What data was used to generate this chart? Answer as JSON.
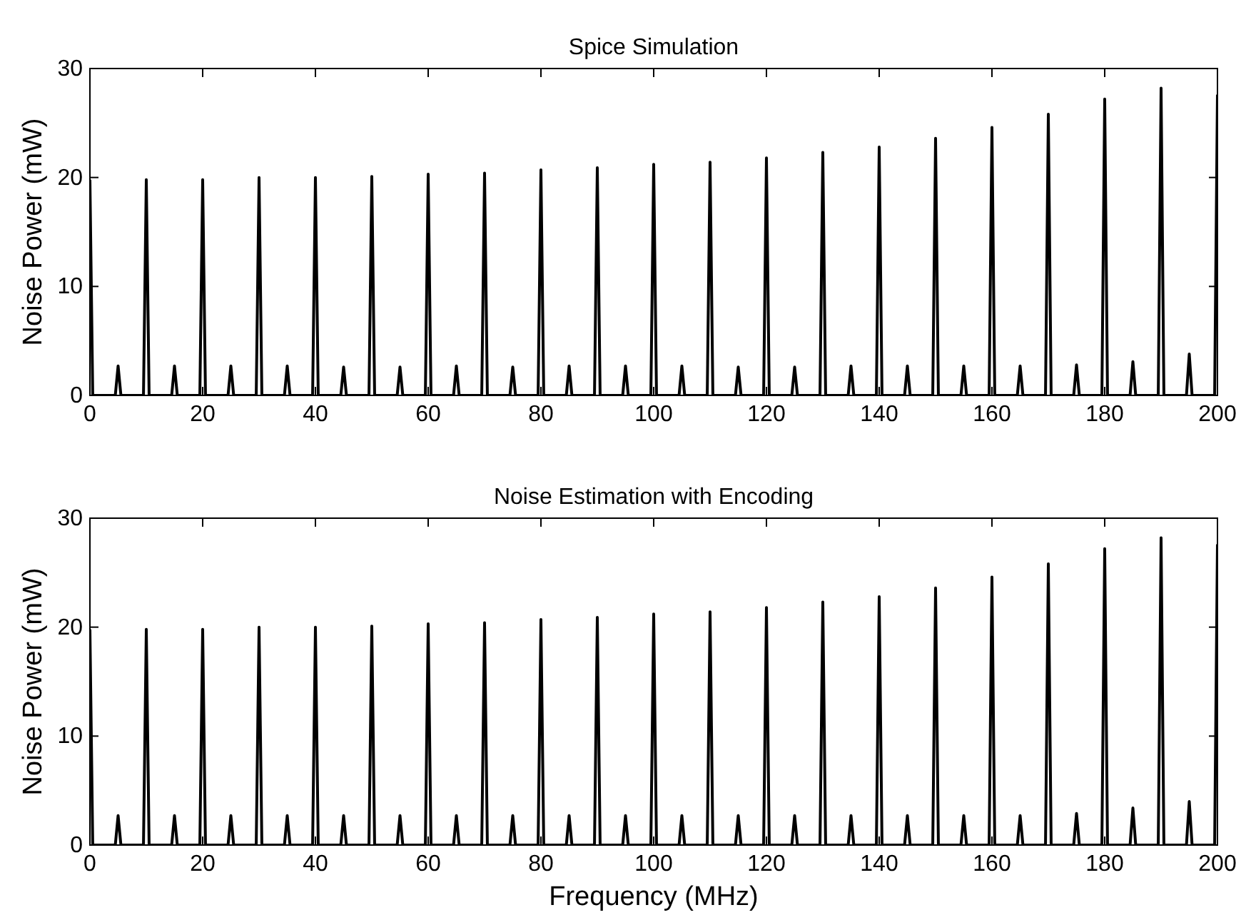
{
  "chart_data": [
    {
      "type": "line",
      "title": "Spice Simulation",
      "ylabel": "Noise Power (mW)",
      "xlim": [
        0,
        200
      ],
      "xticks": [
        0,
        20,
        40,
        60,
        80,
        100,
        120,
        140,
        160,
        180,
        200
      ],
      "ylim": [
        0,
        30
      ],
      "yticks": [
        0,
        10,
        20,
        30
      ],
      "x": [
        0,
        0.5,
        4.5,
        5,
        5.5,
        9.5,
        10,
        10.5,
        14.5,
        15,
        15.5,
        19.5,
        20,
        20.5,
        24.5,
        25,
        25.5,
        29.5,
        30,
        30.5,
        34.5,
        35,
        35.5,
        39.5,
        40,
        40.5,
        44.5,
        45,
        45.5,
        49.5,
        50,
        50.5,
        54.5,
        55,
        55.5,
        59.5,
        60,
        60.5,
        64.5,
        65,
        65.5,
        69.5,
        70,
        70.5,
        74.5,
        75,
        75.5,
        79.5,
        80,
        80.5,
        84.5,
        85,
        85.5,
        89.5,
        90,
        90.5,
        94.5,
        95,
        95.5,
        99.5,
        100,
        100.5,
        104.5,
        105,
        105.5,
        109.5,
        110,
        110.5,
        114.5,
        115,
        115.5,
        119.5,
        120,
        120.5,
        124.5,
        125,
        125.5,
        129.5,
        130,
        130.5,
        134.5,
        135,
        135.5,
        139.5,
        140,
        140.5,
        144.5,
        145,
        145.5,
        149.5,
        150,
        150.5,
        154.5,
        155,
        155.5,
        159.5,
        160,
        160.5,
        164.5,
        165,
        165.5,
        169.5,
        170,
        170.5,
        174.5,
        175,
        175.5,
        179.5,
        180,
        180.5,
        184.5,
        185,
        185.5,
        189.5,
        190,
        190.5,
        194.5,
        195,
        195.5,
        199.5,
        200
      ],
      "series": [
        {
          "color": "#000000",
          "values": [
            19.8,
            0,
            0,
            2.7,
            0,
            0,
            19.8,
            0,
            0,
            2.7,
            0,
            0,
            19.8,
            0,
            0,
            2.7,
            0,
            0,
            20.0,
            0,
            0,
            2.7,
            0,
            0,
            20.0,
            0,
            0,
            2.6,
            0,
            0,
            20.1,
            0,
            0,
            2.6,
            0,
            0,
            20.3,
            0,
            0,
            2.7,
            0,
            0,
            20.4,
            0,
            0,
            2.6,
            0,
            0,
            20.7,
            0,
            0,
            2.7,
            0,
            0,
            20.9,
            0,
            0,
            2.7,
            0,
            0,
            21.2,
            0,
            0,
            2.7,
            0,
            0,
            21.4,
            0,
            0,
            2.6,
            0,
            0,
            21.8,
            0,
            0,
            2.6,
            0,
            0,
            22.3,
            0,
            0,
            2.7,
            0,
            0,
            22.8,
            0,
            0,
            2.7,
            0,
            0,
            23.6,
            0,
            0,
            2.7,
            0,
            0,
            24.6,
            0,
            0,
            2.7,
            0,
            0,
            25.8,
            0,
            0,
            2.8,
            0,
            0,
            27.2,
            0,
            0,
            3.1,
            0,
            0,
            28.2,
            0,
            0,
            3.8,
            0,
            0,
            27.6
          ]
        }
      ]
    },
    {
      "type": "line",
      "title": "Noise Estimation with Encoding",
      "xlabel": "Frequency (MHz)",
      "ylabel": "Noise Power (mW)",
      "xlim": [
        0,
        200
      ],
      "xticks": [
        0,
        20,
        40,
        60,
        80,
        100,
        120,
        140,
        160,
        180,
        200
      ],
      "ylim": [
        0,
        30
      ],
      "yticks": [
        0,
        10,
        20,
        30
      ],
      "x": [
        0,
        0.5,
        4.5,
        5,
        5.5,
        9.5,
        10,
        10.5,
        14.5,
        15,
        15.5,
        19.5,
        20,
        20.5,
        24.5,
        25,
        25.5,
        29.5,
        30,
        30.5,
        34.5,
        35,
        35.5,
        39.5,
        40,
        40.5,
        44.5,
        45,
        45.5,
        49.5,
        50,
        50.5,
        54.5,
        55,
        55.5,
        59.5,
        60,
        60.5,
        64.5,
        65,
        65.5,
        69.5,
        70,
        70.5,
        74.5,
        75,
        75.5,
        79.5,
        80,
        80.5,
        84.5,
        85,
        85.5,
        89.5,
        90,
        90.5,
        94.5,
        95,
        95.5,
        99.5,
        100,
        100.5,
        104.5,
        105,
        105.5,
        109.5,
        110,
        110.5,
        114.5,
        115,
        115.5,
        119.5,
        120,
        120.5,
        124.5,
        125,
        125.5,
        129.5,
        130,
        130.5,
        134.5,
        135,
        135.5,
        139.5,
        140,
        140.5,
        144.5,
        145,
        145.5,
        149.5,
        150,
        150.5,
        154.5,
        155,
        155.5,
        159.5,
        160,
        160.5,
        164.5,
        165,
        165.5,
        169.5,
        170,
        170.5,
        174.5,
        175,
        175.5,
        179.5,
        180,
        180.5,
        184.5,
        185,
        185.5,
        189.5,
        190,
        190.5,
        194.5,
        195,
        195.5,
        199.5,
        200
      ],
      "series": [
        {
          "color": "#000000",
          "values": [
            19.8,
            0,
            0,
            2.7,
            0,
            0,
            19.8,
            0,
            0,
            2.7,
            0,
            0,
            19.8,
            0,
            0,
            2.7,
            0,
            0,
            20.0,
            0,
            0,
            2.7,
            0,
            0,
            20.0,
            0,
            0,
            2.7,
            0,
            0,
            20.1,
            0,
            0,
            2.7,
            0,
            0,
            20.3,
            0,
            0,
            2.7,
            0,
            0,
            20.4,
            0,
            0,
            2.7,
            0,
            0,
            20.7,
            0,
            0,
            2.7,
            0,
            0,
            20.9,
            0,
            0,
            2.7,
            0,
            0,
            21.2,
            0,
            0,
            2.7,
            0,
            0,
            21.4,
            0,
            0,
            2.7,
            0,
            0,
            21.8,
            0,
            0,
            2.7,
            0,
            0,
            22.3,
            0,
            0,
            2.7,
            0,
            0,
            22.8,
            0,
            0,
            2.7,
            0,
            0,
            23.6,
            0,
            0,
            2.7,
            0,
            0,
            24.6,
            0,
            0,
            2.7,
            0,
            0,
            25.8,
            0,
            0,
            2.9,
            0,
            0,
            27.2,
            0,
            0,
            3.4,
            0,
            0,
            28.2,
            0,
            0,
            4.0,
            0,
            0,
            27.6
          ]
        }
      ]
    }
  ]
}
